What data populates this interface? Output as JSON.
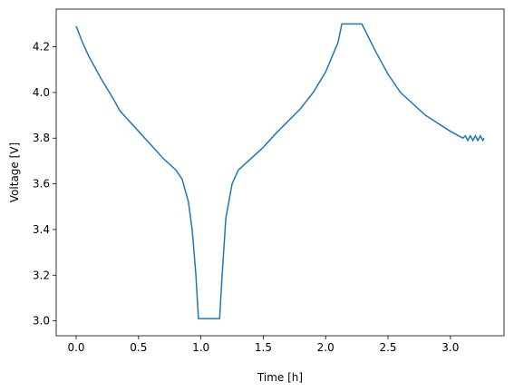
{
  "chart_data": {
    "type": "line",
    "xlabel": "Time [h]",
    "ylabel": "Voltage [V]",
    "x": [
      0,
      0.05,
      0.1,
      0.2,
      0.3,
      0.35,
      0.5,
      0.6,
      0.7,
      0.8,
      0.85,
      0.9,
      0.93,
      0.96,
      0.98,
      1.0,
      1.15,
      1.17,
      1.2,
      1.25,
      1.3,
      1.4,
      1.5,
      1.6,
      1.8,
      1.9,
      2.0,
      2.1,
      2.13,
      2.29,
      2.4,
      2.5,
      2.6,
      2.8,
      3.0,
      3.1,
      3.12,
      3.14,
      3.16,
      3.18,
      3.2,
      3.22,
      3.24,
      3.26,
      3.27
    ],
    "series": [
      {
        "color": "#1f77b4",
        "values": [
          4.29,
          4.22,
          4.16,
          4.06,
          3.97,
          3.92,
          3.83,
          3.77,
          3.71,
          3.66,
          3.62,
          3.52,
          3.4,
          3.2,
          3.01,
          3.01,
          3.01,
          3.2,
          3.45,
          3.6,
          3.66,
          3.71,
          3.76,
          3.82,
          3.93,
          4.0,
          4.09,
          4.22,
          4.3,
          4.3,
          4.18,
          4.08,
          4.0,
          3.9,
          3.83,
          3.8,
          3.81,
          3.79,
          3.81,
          3.79,
          3.81,
          3.79,
          3.81,
          3.79,
          3.8
        ]
      }
    ],
    "xlim": [
      -0.16,
      3.43
    ],
    "ylim": [
      2.935,
      4.365
    ],
    "xticks": [
      {
        "value": 0,
        "label": "0.0"
      },
      {
        "value": 0.5,
        "label": "0.5"
      },
      {
        "value": 1,
        "label": "1.0"
      },
      {
        "value": 1.5,
        "label": "1.5"
      },
      {
        "value": 2,
        "label": "2.0"
      },
      {
        "value": 2.5,
        "label": "2.5"
      },
      {
        "value": 3,
        "label": "3.0"
      }
    ],
    "yticks": [
      {
        "value": 3,
        "label": "3.0"
      },
      3.2,
      3.4,
      3.6,
      3.8,
      {
        "value": 4,
        "label": "4.0"
      },
      4.2
    ]
  }
}
